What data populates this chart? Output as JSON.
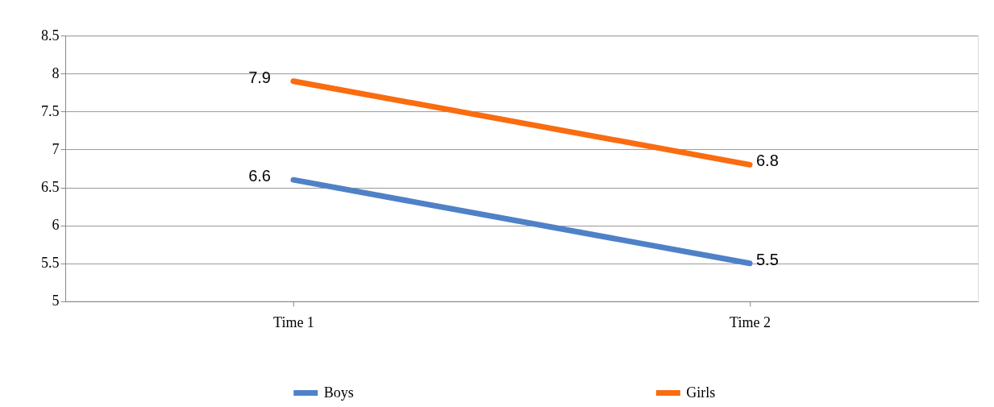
{
  "chart_data": {
    "type": "line",
    "categories": [
      "Time 1",
      "Time 2"
    ],
    "series": [
      {
        "name": "Boys",
        "color": "#4f81c7",
        "values": [
          6.6,
          5.5
        ]
      },
      {
        "name": "Girls",
        "color": "#f96c10",
        "values": [
          7.9,
          6.8
        ]
      }
    ],
    "ylim": [
      5,
      8.5
    ],
    "yticks": [
      5,
      5.5,
      6,
      6.5,
      7,
      7.5,
      8,
      8.5
    ],
    "grid": "y",
    "legend": "bottom",
    "data_labels": true,
    "marker": "none",
    "line_style": "solid"
  }
}
